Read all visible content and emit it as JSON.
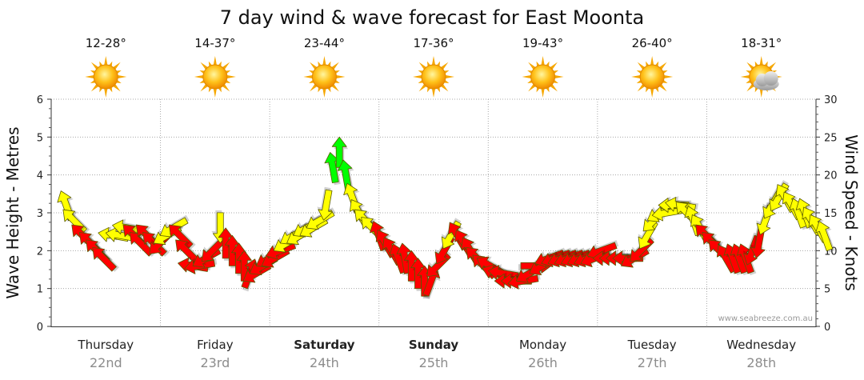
{
  "title": "7 day wind & wave forecast for East Moonta",
  "credit": "www.seabreeze.com.au",
  "days": [
    {
      "name": "Thursday",
      "date": "22nd",
      "temp": "12-28°",
      "icon": "sun-icon",
      "bold": false
    },
    {
      "name": "Friday",
      "date": "23rd",
      "temp": "14-37°",
      "icon": "sun-icon",
      "bold": false
    },
    {
      "name": "Saturday",
      "date": "24th",
      "temp": "23-44°",
      "icon": "sun-icon",
      "bold": true
    },
    {
      "name": "Sunday",
      "date": "25th",
      "temp": "17-36°",
      "icon": "sun-icon",
      "bold": true
    },
    {
      "name": "Monday",
      "date": "26th",
      "temp": "19-43°",
      "icon": "sun-icon",
      "bold": false
    },
    {
      "name": "Tuesday",
      "date": "27th",
      "temp": "26-40°",
      "icon": "sun-icon",
      "bold": false
    },
    {
      "name": "Wednesday",
      "date": "28th",
      "temp": "18-31°",
      "icon": "sun-cloud-icon",
      "bold": false
    }
  ],
  "colors": {
    "light": "#ffff00",
    "moderate": "#ff0000",
    "strong": "#00ff00"
  },
  "chart_data": {
    "type": "scatter",
    "title": "7 day wind & wave forecast for East Moonta",
    "ylabel_left": "Wave Height - Metres",
    "ylabel_right": "Wind Speed - Knots",
    "ylim_left": [
      0,
      6
    ],
    "ylim_right": [
      0,
      30
    ],
    "yticks_left": [
      "0",
      "1",
      "2",
      "3",
      "4",
      "5",
      "6"
    ],
    "yticks_right": [
      "0",
      "5",
      "10",
      "15",
      "20",
      "25",
      "30"
    ],
    "grid": true,
    "x_unit": "days from start of Thursday 22nd",
    "series": [
      {
        "name": "",
        "points": [
          [
            0.02,
            16,
            160,
            "light"
          ],
          [
            0.09,
            14,
            135,
            "light"
          ],
          [
            0.17,
            12,
            135,
            "moderate"
          ],
          [
            0.24,
            11,
            135,
            "moderate"
          ],
          [
            0.3,
            10,
            135,
            "moderate"
          ],
          [
            0.36,
            9,
            135,
            "moderate"
          ],
          [
            0.45,
            12,
            100,
            "light"
          ],
          [
            0.52,
            12,
            100,
            "light"
          ],
          [
            0.58,
            13,
            100,
            "light"
          ],
          [
            0.64,
            12,
            135,
            "moderate"
          ],
          [
            0.7,
            11,
            135,
            "moderate"
          ],
          [
            0.76,
            12,
            135,
            "moderate"
          ],
          [
            0.82,
            11,
            135,
            "moderate"
          ],
          [
            0.88,
            11,
            45,
            "moderate"
          ],
          [
            0.94,
            12,
            60,
            "light"
          ],
          [
            1.0,
            13,
            60,
            "light"
          ],
          [
            1.06,
            12,
            135,
            "moderate"
          ],
          [
            1.12,
            10,
            135,
            "moderate"
          ],
          [
            1.18,
            8,
            100,
            "moderate"
          ],
          [
            1.24,
            8,
            80,
            "moderate"
          ],
          [
            1.3,
            9,
            60,
            "moderate"
          ],
          [
            1.36,
            10,
            45,
            "moderate"
          ],
          [
            1.43,
            13,
            0,
            "light"
          ],
          [
            1.48,
            11,
            180,
            "moderate"
          ],
          [
            1.54,
            10,
            180,
            "moderate"
          ],
          [
            1.6,
            9,
            180,
            "moderate"
          ],
          [
            1.65,
            8,
            180,
            "moderate"
          ],
          [
            1.7,
            7,
            200,
            "moderate"
          ],
          [
            1.76,
            7,
            60,
            "moderate"
          ],
          [
            1.82,
            8,
            60,
            "moderate"
          ],
          [
            1.88,
            9,
            60,
            "moderate"
          ],
          [
            1.93,
            9,
            60,
            "moderate"
          ],
          [
            1.98,
            10,
            70,
            "moderate"
          ],
          [
            2.04,
            11,
            60,
            "light"
          ],
          [
            2.1,
            12,
            60,
            "light"
          ],
          [
            2.16,
            12,
            60,
            "light"
          ],
          [
            2.22,
            13,
            60,
            "light"
          ],
          [
            2.28,
            13,
            60,
            "light"
          ],
          [
            2.34,
            14,
            60,
            "light"
          ],
          [
            2.4,
            16,
            10,
            "light"
          ],
          [
            2.46,
            21,
            170,
            "strong"
          ],
          [
            2.52,
            23,
            180,
            "strong"
          ],
          [
            2.58,
            20,
            170,
            "strong"
          ],
          [
            2.64,
            17,
            160,
            "light"
          ],
          [
            2.7,
            15,
            150,
            "light"
          ],
          [
            2.76,
            14,
            135,
            "light"
          ],
          [
            2.82,
            13,
            135,
            "light"
          ],
          [
            2.88,
            12,
            160,
            "moderate"
          ],
          [
            2.94,
            11,
            150,
            "moderate"
          ],
          [
            3.0,
            10,
            150,
            "moderate"
          ],
          [
            3.06,
            9,
            160,
            "moderate"
          ],
          [
            3.12,
            9,
            170,
            "moderate"
          ],
          [
            3.18,
            8,
            180,
            "moderate"
          ],
          [
            3.24,
            7,
            180,
            "moderate"
          ],
          [
            3.3,
            6,
            180,
            "moderate"
          ],
          [
            3.36,
            6,
            200,
            "moderate"
          ],
          [
            3.42,
            8,
            45,
            "moderate"
          ],
          [
            3.48,
            10,
            30,
            "moderate"
          ],
          [
            3.54,
            12,
            30,
            "light"
          ],
          [
            3.6,
            12,
            150,
            "moderate"
          ],
          [
            3.66,
            11,
            150,
            "moderate"
          ],
          [
            3.72,
            10,
            150,
            "moderate"
          ],
          [
            3.78,
            9,
            135,
            "moderate"
          ],
          [
            3.84,
            8,
            135,
            "moderate"
          ],
          [
            3.9,
            8,
            120,
            "moderate"
          ],
          [
            3.96,
            7,
            110,
            "moderate"
          ],
          [
            4.02,
            7,
            100,
            "moderate"
          ],
          [
            4.08,
            6,
            90,
            "moderate"
          ],
          [
            4.14,
            6,
            90,
            "moderate"
          ],
          [
            4.2,
            6,
            80,
            "moderate"
          ],
          [
            4.26,
            7,
            60,
            "moderate"
          ],
          [
            4.32,
            8,
            270,
            "moderate"
          ],
          [
            4.38,
            8,
            60,
            "moderate"
          ],
          [
            4.44,
            9,
            70,
            "moderate"
          ],
          [
            4.5,
            9,
            70,
            "moderate"
          ],
          [
            4.56,
            9,
            70,
            "moderate"
          ],
          [
            4.62,
            9,
            70,
            "moderate"
          ],
          [
            4.68,
            9,
            70,
            "moderate"
          ],
          [
            4.74,
            9,
            70,
            "moderate"
          ],
          [
            4.8,
            9,
            70,
            "moderate"
          ],
          [
            4.86,
            9,
            70,
            "moderate"
          ],
          [
            4.92,
            10,
            70,
            "moderate"
          ],
          [
            4.98,
            9,
            90,
            "moderate"
          ],
          [
            5.04,
            9,
            90,
            "moderate"
          ],
          [
            5.1,
            9,
            90,
            "moderate"
          ],
          [
            5.16,
            9,
            90,
            "moderate"
          ],
          [
            5.22,
            9,
            60,
            "moderate"
          ],
          [
            5.28,
            10,
            45,
            "moderate"
          ],
          [
            5.34,
            12,
            30,
            "light"
          ],
          [
            5.4,
            14,
            45,
            "light"
          ],
          [
            5.46,
            15,
            60,
            "light"
          ],
          [
            5.52,
            15,
            80,
            "light"
          ],
          [
            5.58,
            16,
            90,
            "light"
          ],
          [
            5.64,
            16,
            100,
            "light"
          ],
          [
            5.7,
            15,
            135,
            "light"
          ],
          [
            5.76,
            14,
            160,
            "light"
          ],
          [
            5.82,
            13,
            150,
            "light"
          ],
          [
            5.88,
            12,
            135,
            "moderate"
          ],
          [
            5.94,
            11,
            135,
            "moderate"
          ],
          [
            6.0,
            10,
            135,
            "moderate"
          ],
          [
            6.06,
            9,
            150,
            "moderate"
          ],
          [
            6.12,
            9,
            160,
            "moderate"
          ],
          [
            6.18,
            9,
            160,
            "moderate"
          ],
          [
            6.24,
            9,
            160,
            "moderate"
          ],
          [
            6.3,
            10,
            20,
            "moderate"
          ],
          [
            6.36,
            11,
            10,
            "moderate"
          ],
          [
            6.42,
            14,
            20,
            "light"
          ],
          [
            6.48,
            16,
            30,
            "light"
          ],
          [
            6.54,
            17,
            30,
            "light"
          ],
          [
            6.6,
            17,
            150,
            "light"
          ],
          [
            6.66,
            16,
            150,
            "light"
          ],
          [
            6.72,
            15,
            160,
            "light"
          ],
          [
            6.78,
            15,
            160,
            "light"
          ],
          [
            6.84,
            14,
            150,
            "light"
          ],
          [
            6.9,
            13,
            150,
            "light"
          ],
          [
            6.96,
            12,
            160,
            "light"
          ]
        ]
      }
    ]
  }
}
